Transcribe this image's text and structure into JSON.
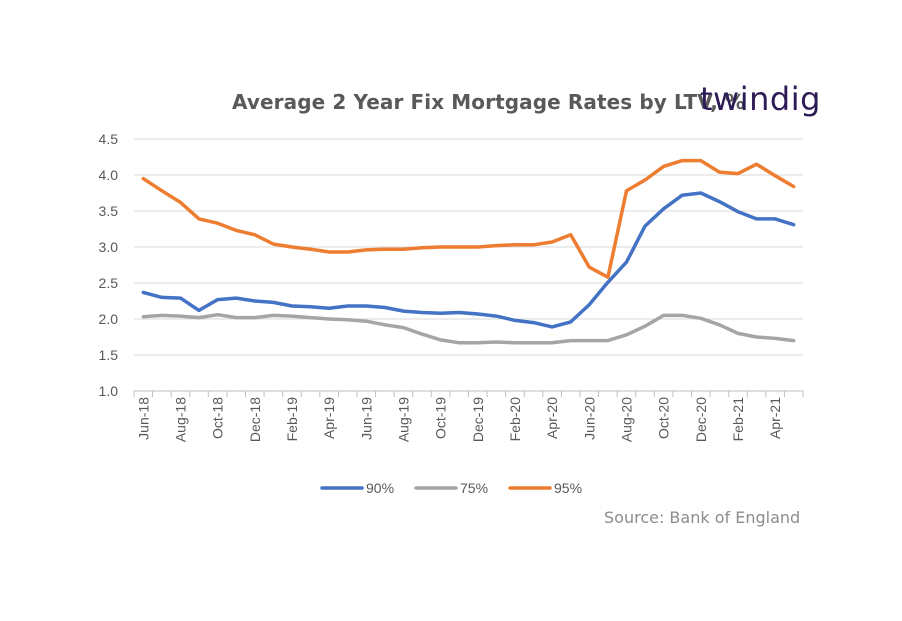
{
  "title": "Average 2 Year Fix Mortgage Rates by LTV, %",
  "brand": "twindig",
  "source": "Source: Bank of England",
  "chart_data": {
    "type": "line",
    "title": "Average 2 Year Fix Mortgage Rates by LTV, %",
    "xlabel": "",
    "ylabel": "",
    "ylim": [
      1.0,
      4.5
    ],
    "yticks": [
      "1.0",
      "1.5",
      "2.0",
      "2.5",
      "3.0",
      "3.5",
      "4.0",
      "4.5"
    ],
    "xtick_labels": [
      "Jun-18",
      "Aug-18",
      "Oct-18",
      "Dec-18",
      "Feb-19",
      "Apr-19",
      "Jun-19",
      "Aug-19",
      "Oct-19",
      "Dec-19",
      "Feb-20",
      "Apr-20",
      "Jun-20",
      "Aug-20",
      "Oct-20",
      "Dec-20",
      "Feb-21",
      "Apr-21"
    ],
    "x": [
      "Jun-18",
      "Jul-18",
      "Aug-18",
      "Sep-18",
      "Oct-18",
      "Nov-18",
      "Dec-18",
      "Jan-19",
      "Feb-19",
      "Mar-19",
      "Apr-19",
      "May-19",
      "Jun-19",
      "Jul-19",
      "Aug-19",
      "Sep-19",
      "Oct-19",
      "Nov-19",
      "Dec-19",
      "Jan-20",
      "Feb-20",
      "Mar-20",
      "Apr-20",
      "May-20",
      "Jun-20",
      "Jul-20",
      "Aug-20",
      "Sep-20",
      "Oct-20",
      "Nov-20",
      "Dec-20",
      "Jan-21",
      "Feb-21",
      "Mar-21",
      "Apr-21",
      "May-21"
    ],
    "series": [
      {
        "name": "90%",
        "color": "#4472c4",
        "values": [
          2.37,
          2.3,
          2.29,
          2.12,
          2.27,
          2.29,
          2.25,
          2.23,
          2.18,
          2.17,
          2.15,
          2.18,
          2.18,
          2.16,
          2.11,
          2.09,
          2.08,
          2.09,
          2.07,
          2.04,
          1.98,
          1.95,
          1.89,
          1.96,
          2.2,
          2.51,
          2.79,
          3.29,
          3.53,
          3.72,
          3.75,
          3.63,
          3.49,
          3.39,
          3.39,
          3.31
        ]
      },
      {
        "name": "75%",
        "color": "#a5a5a5",
        "values": [
          2.03,
          2.05,
          2.04,
          2.02,
          2.06,
          2.02,
          2.02,
          2.05,
          2.04,
          2.02,
          2.0,
          1.99,
          1.97,
          1.92,
          1.88,
          1.79,
          1.71,
          1.67,
          1.67,
          1.68,
          1.67,
          1.67,
          1.67,
          1.7,
          1.7,
          1.7,
          1.78,
          1.9,
          2.05,
          2.05,
          2.01,
          1.92,
          1.8,
          1.75,
          1.73,
          1.7
        ]
      },
      {
        "name": "95%",
        "color": "#ed7d31",
        "values": [
          3.95,
          3.78,
          3.62,
          3.39,
          3.33,
          3.23,
          3.17,
          3.04,
          3.0,
          2.97,
          2.93,
          2.93,
          2.96,
          2.97,
          2.97,
          2.99,
          3.0,
          3.0,
          3.0,
          3.02,
          3.03,
          3.03,
          3.07,
          3.17,
          2.72,
          2.58,
          3.78,
          3.93,
          4.12,
          4.2,
          4.2,
          4.04,
          4.02,
          4.15,
          3.99,
          3.84
        ]
      }
    ],
    "legend": "bottom",
    "grid": "horizontal"
  }
}
